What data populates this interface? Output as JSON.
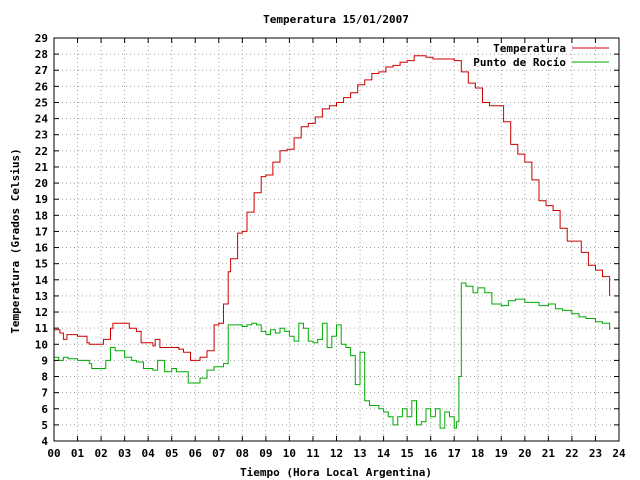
{
  "chart_data": {
    "type": "line",
    "title": "Temperatura 15/01/2007",
    "xlabel": "Tiempo (Hora Local Argentina)",
    "ylabel": "Temperatura (Grados Celsius)",
    "xlim": [
      0,
      24
    ],
    "ylim": [
      4,
      29
    ],
    "x_tick_labels": [
      "00",
      "01",
      "02",
      "03",
      "04",
      "05",
      "06",
      "07",
      "08",
      "09",
      "10",
      "11",
      "12",
      "13",
      "14",
      "15",
      "16",
      "17",
      "18",
      "19",
      "20",
      "21",
      "22",
      "23",
      "24"
    ],
    "y_ticks": [
      4,
      5,
      6,
      7,
      8,
      9,
      10,
      11,
      12,
      13,
      14,
      15,
      16,
      17,
      18,
      19,
      20,
      21,
      22,
      23,
      24,
      25,
      26,
      27,
      28,
      29
    ],
    "grid": true,
    "legend_position": "top-right",
    "series": [
      {
        "name": "Temperatura",
        "color": "#cc0000",
        "x": [
          0.0,
          0.25,
          0.4,
          0.55,
          1.0,
          1.4,
          1.5,
          2.0,
          2.1,
          2.4,
          2.5,
          3.0,
          3.2,
          3.5,
          3.7,
          4.0,
          4.2,
          4.3,
          4.5,
          5.0,
          5.3,
          5.5,
          5.8,
          6.0,
          6.2,
          6.5,
          6.8,
          7.0,
          7.2,
          7.4,
          7.5,
          7.8,
          8.0,
          8.2,
          8.5,
          8.8,
          9.0,
          9.3,
          9.6,
          9.9,
          10.2,
          10.5,
          10.8,
          11.1,
          11.4,
          11.7,
          12.0,
          12.3,
          12.6,
          12.9,
          13.2,
          13.5,
          13.8,
          14.1,
          14.4,
          14.7,
          15.0,
          15.3,
          15.5,
          15.8,
          16.1,
          16.4,
          16.7,
          17.0,
          17.3,
          17.6,
          17.9,
          18.2,
          18.5,
          18.8,
          19.1,
          19.4,
          19.7,
          20.0,
          20.3,
          20.6,
          20.9,
          21.2,
          21.5,
          21.8,
          22.1,
          22.4,
          22.7,
          23.0,
          23.3,
          23.6
        ],
        "y": [
          10.9,
          10.7,
          10.3,
          10.6,
          10.5,
          10.1,
          10.0,
          10.0,
          10.3,
          11.0,
          11.3,
          11.3,
          11.0,
          10.8,
          10.1,
          10.1,
          9.9,
          10.3,
          9.8,
          9.8,
          9.7,
          9.5,
          9.0,
          9.0,
          9.2,
          9.6,
          11.2,
          11.3,
          12.5,
          14.5,
          15.3,
          16.9,
          17.0,
          18.2,
          19.4,
          20.4,
          20.5,
          21.3,
          22.0,
          22.1,
          22.8,
          23.5,
          23.7,
          24.1,
          24.6,
          24.8,
          25.0,
          25.3,
          25.6,
          26.1,
          26.4,
          26.8,
          26.9,
          27.2,
          27.3,
          27.5,
          27.6,
          27.9,
          27.9,
          27.8,
          27.7,
          27.7,
          27.7,
          27.6,
          26.9,
          26.2,
          25.9,
          25.0,
          24.8,
          24.8,
          23.8,
          22.4,
          21.8,
          21.3,
          20.2,
          18.9,
          18.6,
          18.3,
          17.2,
          16.4,
          16.4,
          15.7,
          14.9,
          14.6,
          14.2,
          13.0
        ]
      },
      {
        "name": "Punto de Rocío",
        "color": "#00aa00",
        "x": [
          0.0,
          0.2,
          0.4,
          0.6,
          1.0,
          1.5,
          1.6,
          2.0,
          2.2,
          2.4,
          2.6,
          3.0,
          3.3,
          3.5,
          3.8,
          4.0,
          4.2,
          4.4,
          4.7,
          5.0,
          5.2,
          5.4,
          5.7,
          6.0,
          6.2,
          6.5,
          6.8,
          7.0,
          7.2,
          7.4,
          7.6,
          7.8,
          8.0,
          8.2,
          8.4,
          8.6,
          8.8,
          9.0,
          9.2,
          9.4,
          9.6,
          9.8,
          10.0,
          10.2,
          10.4,
          10.6,
          10.8,
          11.0,
          11.2,
          11.4,
          11.6,
          11.8,
          12.0,
          12.2,
          12.4,
          12.6,
          12.8,
          13.0,
          13.2,
          13.4,
          13.6,
          13.8,
          14.0,
          14.2,
          14.4,
          14.6,
          14.8,
          15.0,
          15.2,
          15.4,
          15.6,
          15.8,
          16.0,
          16.2,
          16.4,
          16.6,
          16.8,
          17.0,
          17.1,
          17.2,
          17.3,
          17.5,
          17.8,
          18.0,
          18.3,
          18.6,
          19.0,
          19.3,
          19.6,
          20.0,
          20.3,
          20.6,
          21.0,
          21.3,
          21.6,
          22.0,
          22.3,
          22.6,
          23.0,
          23.3,
          23.6
        ],
        "y": [
          9.2,
          9.0,
          9.2,
          9.1,
          9.0,
          8.8,
          8.5,
          8.5,
          9.0,
          9.8,
          9.6,
          9.2,
          9.0,
          8.9,
          8.5,
          8.5,
          8.4,
          9.0,
          8.3,
          8.5,
          8.3,
          8.3,
          7.6,
          7.6,
          7.9,
          8.4,
          8.6,
          8.6,
          8.8,
          11.2,
          11.2,
          11.2,
          11.1,
          11.2,
          11.3,
          11.2,
          10.8,
          10.6,
          10.9,
          10.7,
          11.0,
          10.8,
          10.5,
          10.2,
          11.3,
          11.0,
          10.2,
          10.1,
          10.3,
          11.3,
          9.8,
          10.5,
          11.2,
          10.0,
          9.8,
          9.3,
          7.5,
          9.5,
          6.5,
          6.2,
          6.2,
          6.0,
          5.8,
          5.5,
          5.0,
          5.5,
          6.0,
          5.5,
          6.5,
          5.0,
          5.2,
          6.0,
          5.5,
          6.0,
          4.8,
          5.8,
          5.5,
          4.8,
          5.2,
          8.0,
          13.8,
          13.6,
          13.2,
          13.5,
          13.2,
          12.5,
          12.4,
          12.7,
          12.8,
          12.6,
          12.6,
          12.4,
          12.5,
          12.2,
          12.1,
          11.9,
          11.7,
          11.6,
          11.4,
          11.3,
          10.9
        ]
      }
    ]
  }
}
